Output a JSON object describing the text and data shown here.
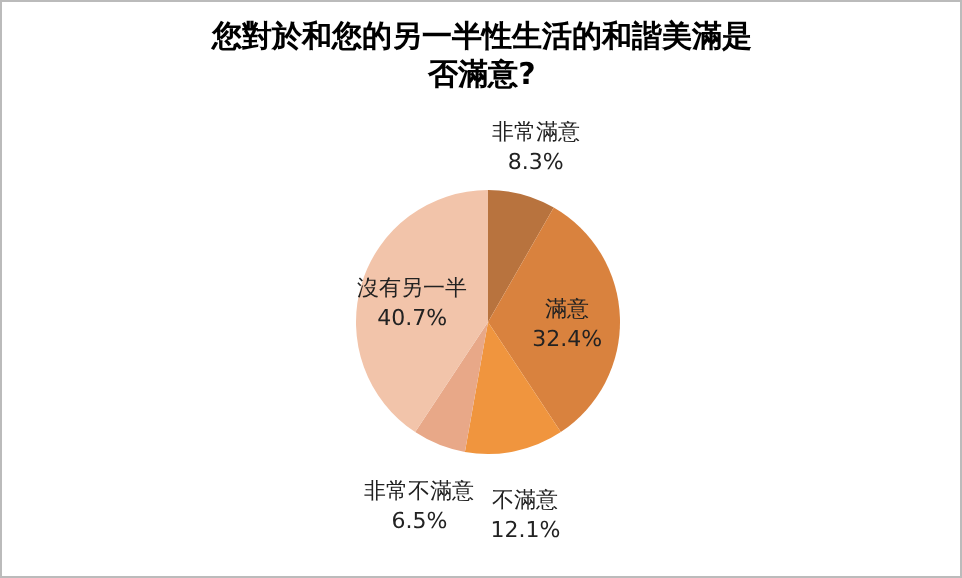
{
  "chart_data": {
    "type": "pie",
    "title": "您對於和您的另一半性生活的和諧美滿是否滿意?",
    "categories": [
      "非常滿意",
      "滿意",
      "不滿意",
      "非常不滿意",
      "沒有另一半"
    ],
    "values": [
      8.3,
      32.4,
      12.1,
      6.5,
      40.7
    ],
    "colors": [
      "#b8733e",
      "#d9823e",
      "#f0953e",
      "#e8a888",
      "#f2c4aa"
    ],
    "value_labels": [
      "8.3%",
      "32.4%",
      "12.1%",
      "6.5%",
      "40.7%"
    ],
    "legend": false
  }
}
